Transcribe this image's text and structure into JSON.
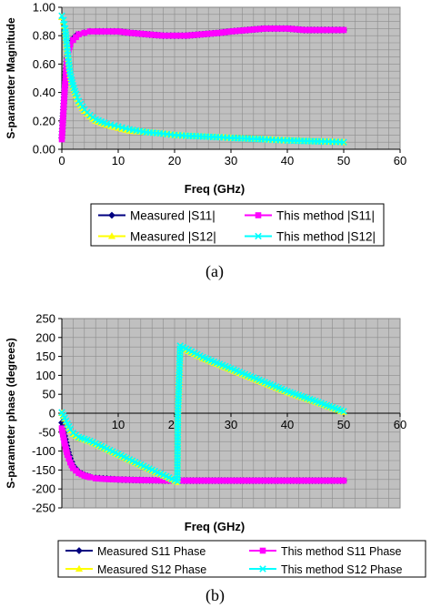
{
  "figure": {
    "sub_labels": [
      "(a)",
      "(b)"
    ]
  },
  "chart_data": [
    {
      "type": "line",
      "ylabel": "S-parameter Magnitude",
      "xlabel": "Freq (GHz)",
      "xlim": [
        0,
        60
      ],
      "ylim": [
        0,
        1.0
      ],
      "x_ticks": [
        "0",
        "10",
        "20",
        "30",
        "40",
        "50",
        "60"
      ],
      "y_ticks": [
        "0.00",
        "0.20",
        "0.40",
        "0.60",
        "0.80",
        "1.00"
      ],
      "grid": true,
      "plot_background": "#c0c0c0",
      "legend": {
        "placement": "below",
        "entries": [
          "Measured |S11|",
          "This method |S11|",
          "Measured |S12|",
          "This method |S12|"
        ]
      },
      "series": [
        {
          "name": "Measured |S11|",
          "color": "#000080",
          "marker": "diamond",
          "x": [
            0,
            0.3,
            0.6,
            0.9,
            1.2,
            1.5,
            2,
            2.5,
            3,
            4,
            5,
            6,
            8,
            10,
            12,
            15,
            18,
            20,
            22,
            25,
            28,
            30,
            33,
            36,
            38,
            40,
            43,
            46,
            48,
            50
          ],
          "y": [
            0.08,
            0.3,
            0.5,
            0.64,
            0.71,
            0.75,
            0.78,
            0.8,
            0.81,
            0.82,
            0.83,
            0.83,
            0.83,
            0.83,
            0.82,
            0.81,
            0.8,
            0.8,
            0.8,
            0.81,
            0.82,
            0.83,
            0.84,
            0.85,
            0.85,
            0.85,
            0.84,
            0.84,
            0.84,
            0.84
          ]
        },
        {
          "name": "This method |S11|",
          "color": "#ff00ff",
          "marker": "square",
          "x": [
            0,
            0.3,
            0.6,
            0.9,
            1.2,
            1.5,
            2,
            2.5,
            3,
            4,
            5,
            6,
            8,
            10,
            12,
            15,
            18,
            20,
            22,
            25,
            28,
            30,
            33,
            36,
            38,
            40,
            43,
            46,
            48,
            50
          ],
          "y": [
            0.07,
            0.28,
            0.48,
            0.62,
            0.7,
            0.74,
            0.77,
            0.79,
            0.81,
            0.82,
            0.83,
            0.83,
            0.83,
            0.83,
            0.82,
            0.81,
            0.8,
            0.8,
            0.8,
            0.81,
            0.82,
            0.83,
            0.84,
            0.85,
            0.85,
            0.85,
            0.84,
            0.84,
            0.84,
            0.84
          ]
        },
        {
          "name": "Measured |S12|",
          "color": "#ffff00",
          "marker": "triangle",
          "x": [
            0,
            0.3,
            0.6,
            0.9,
            1.2,
            1.5,
            2,
            2.5,
            3,
            4,
            5,
            6,
            8,
            10,
            12,
            15,
            18,
            20,
            22,
            25,
            28,
            30,
            33,
            36,
            38,
            40,
            43,
            46,
            48,
            50
          ],
          "y": [
            0.93,
            0.9,
            0.84,
            0.73,
            0.61,
            0.52,
            0.44,
            0.38,
            0.33,
            0.27,
            0.23,
            0.2,
            0.17,
            0.15,
            0.13,
            0.12,
            0.11,
            0.1,
            0.095,
            0.09,
            0.085,
            0.08,
            0.075,
            0.07,
            0.065,
            0.062,
            0.058,
            0.055,
            0.053,
            0.05
          ]
        },
        {
          "name": "This method |S12|",
          "color": "#00ffff",
          "marker": "x",
          "x": [
            0,
            0.3,
            0.6,
            0.9,
            1.2,
            1.5,
            2,
            2.5,
            3,
            4,
            5,
            6,
            8,
            10,
            12,
            15,
            18,
            20,
            22,
            25,
            28,
            30,
            33,
            36,
            38,
            40,
            43,
            46,
            48,
            50
          ],
          "y": [
            0.94,
            0.91,
            0.85,
            0.74,
            0.62,
            0.53,
            0.45,
            0.39,
            0.34,
            0.28,
            0.24,
            0.21,
            0.18,
            0.16,
            0.14,
            0.12,
            0.11,
            0.1,
            0.095,
            0.09,
            0.085,
            0.08,
            0.075,
            0.07,
            0.065,
            0.062,
            0.058,
            0.055,
            0.053,
            0.05
          ]
        }
      ]
    },
    {
      "type": "line",
      "ylabel": "S-parameter phase (degrees)",
      "xlabel": "Freq (GHz)",
      "xlim": [
        0,
        60
      ],
      "ylim": [
        -250,
        250
      ],
      "x_ticks": [
        "10",
        "20",
        "30",
        "40",
        "50",
        "60"
      ],
      "y_ticks": [
        "250",
        "200",
        "150",
        "100",
        "50",
        "0",
        "-50",
        "-100",
        "-150",
        "-200",
        "-250"
      ],
      "grid": true,
      "plot_background": "#c0c0c0",
      "legend": {
        "placement": "below",
        "entries": [
          "Measured S11 Phase",
          "This method S11 Phase",
          "Measured S12 Phase",
          "This method S12 Phase"
        ]
      },
      "series": [
        {
          "name": "Measured S11 Phase",
          "color": "#000080",
          "marker": "diamond",
          "x": [
            0,
            0.5,
            1,
            1.5,
            2,
            3,
            4,
            5,
            6,
            8,
            10,
            12,
            15,
            20,
            25,
            30,
            35,
            40,
            45,
            50
          ],
          "y": [
            -25,
            -60,
            -95,
            -120,
            -138,
            -155,
            -163,
            -168,
            -171,
            -173,
            -175,
            -176,
            -177,
            -178,
            -178,
            -178,
            -178,
            -178,
            -178,
            -178
          ]
        },
        {
          "name": "This method S11 Phase",
          "color": "#ff00ff",
          "marker": "square",
          "x": [
            0,
            0.5,
            1,
            1.5,
            2,
            3,
            4,
            5,
            6,
            8,
            10,
            12,
            15,
            20,
            25,
            30,
            35,
            40,
            45,
            50
          ],
          "y": [
            -40,
            -80,
            -110,
            -130,
            -145,
            -158,
            -165,
            -169,
            -172,
            -174,
            -175,
            -176,
            -177,
            -178,
            -178,
            -178,
            -178,
            -178,
            -178,
            -178
          ]
        },
        {
          "name": "Measured S12 Phase",
          "color": "#ffff00",
          "marker": "triangle",
          "x": [
            0,
            0.5,
            1,
            1.5,
            2,
            3,
            5,
            10,
            15,
            20.5,
            20.6,
            21,
            25,
            30,
            35,
            40,
            45,
            50
          ],
          "y": [
            0,
            -15,
            -30,
            -45,
            -55,
            -65,
            -75,
            -110,
            -145,
            -182,
            0,
            175,
            145,
            115,
            85,
            55,
            30,
            3
          ]
        },
        {
          "name": "This method S12 Phase",
          "color": "#00ffff",
          "marker": "x",
          "x": [
            0,
            0.5,
            1,
            1.5,
            2,
            3,
            5,
            10,
            15,
            20.5,
            20.6,
            21,
            25,
            30,
            35,
            40,
            45,
            50
          ],
          "y": [
            2,
            -12,
            -28,
            -42,
            -52,
            -63,
            -73,
            -108,
            -143,
            -180,
            0,
            178,
            148,
            118,
            88,
            58,
            32,
            5
          ]
        }
      ]
    }
  ]
}
